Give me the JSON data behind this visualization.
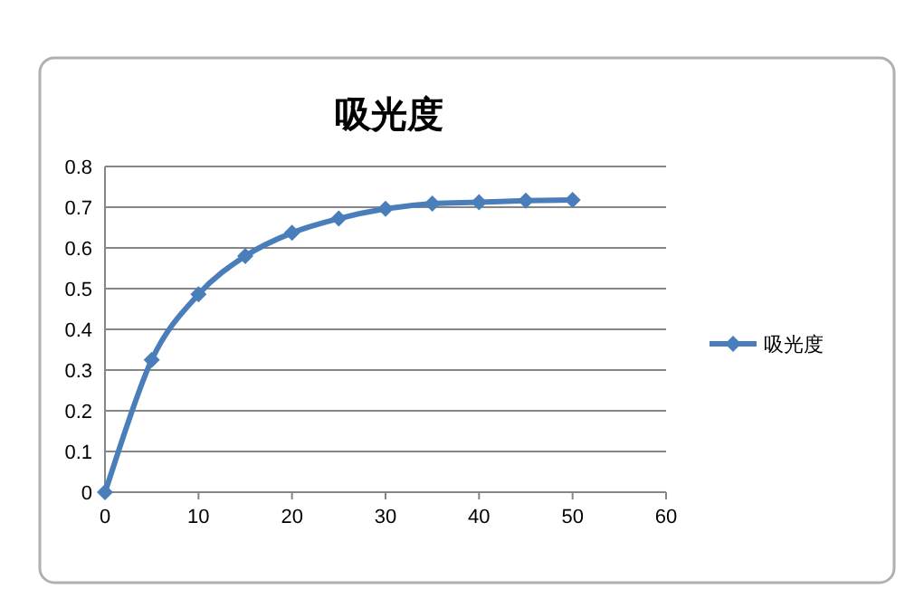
{
  "chart_data": {
    "type": "line",
    "title": "吸光度",
    "x": [
      0,
      5,
      10,
      15,
      20,
      25,
      30,
      35,
      40,
      45,
      50
    ],
    "series": [
      {
        "name": "吸光度",
        "color": "#4a7ebb",
        "values": [
          0,
          0.325,
          0.486,
          0.58,
          0.637,
          0.672,
          0.696,
          0.709,
          0.712,
          0.716,
          0.718
        ]
      }
    ],
    "xlim": [
      0,
      60
    ],
    "xticks": [
      0,
      10,
      20,
      30,
      40,
      50,
      60
    ],
    "ylim": [
      0,
      0.8
    ],
    "yticks": [
      0,
      0.1,
      0.2,
      0.3,
      0.4,
      0.5,
      0.6,
      0.7,
      0.8
    ],
    "grid": "y",
    "legend": "right",
    "marker": "diamond",
    "line_style": "solid"
  }
}
